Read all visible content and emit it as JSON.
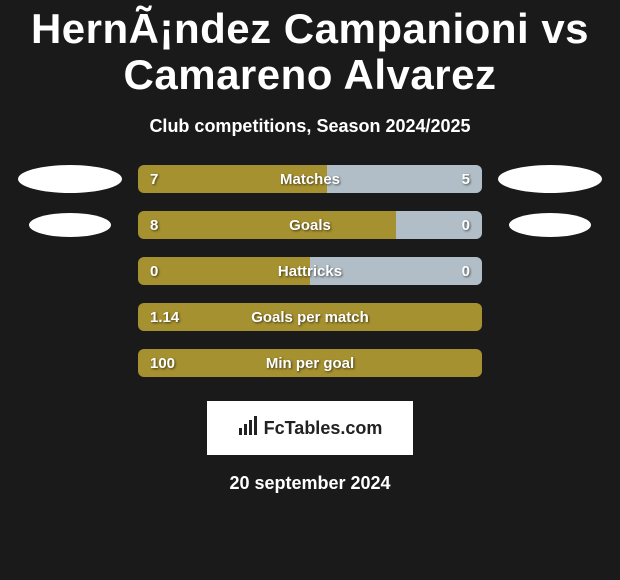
{
  "title": "HernÃ¡ndez Campanioni vs Camareno Alvarez",
  "subtitle": "Club competitions, Season 2024/2025",
  "colors": {
    "left": "#a69130",
    "right": "#b2bec7",
    "bg": "#1a1a1a"
  },
  "stats": [
    {
      "label": "Matches",
      "left_val": "7",
      "right_val": "5",
      "left_pct": 55,
      "right_pct": 45,
      "left_color": "#a69130",
      "right_color": "#b2bec7",
      "show_bubbles": true,
      "bubble_small": false
    },
    {
      "label": "Goals",
      "left_val": "8",
      "right_val": "0",
      "left_pct": 75,
      "right_pct": 25,
      "left_color": "#a69130",
      "right_color": "#b2bec7",
      "show_bubbles": true,
      "bubble_small": true
    },
    {
      "label": "Hattricks",
      "left_val": "0",
      "right_val": "0",
      "left_pct": 50,
      "right_pct": 50,
      "left_color": "#a69130",
      "right_color": "#b2bec7",
      "show_bubbles": false,
      "bubble_small": false
    },
    {
      "label": "Goals per match",
      "left_val": "1.14",
      "right_val": "",
      "left_pct": 100,
      "right_pct": 0,
      "left_color": "#a69130",
      "right_color": "#b2bec7",
      "show_bubbles": false,
      "bubble_small": false
    },
    {
      "label": "Min per goal",
      "left_val": "100",
      "right_val": "",
      "left_pct": 100,
      "right_pct": 0,
      "left_color": "#a69130",
      "right_color": "#b2bec7",
      "show_bubbles": false,
      "bubble_small": false
    }
  ],
  "logo_text": "FcTables.com",
  "date": "20 september 2024",
  "typography": {
    "title_fontsize": 42,
    "subtitle_fontsize": 18,
    "stat_label_fontsize": 15,
    "value_fontsize": 15,
    "date_fontsize": 18
  }
}
